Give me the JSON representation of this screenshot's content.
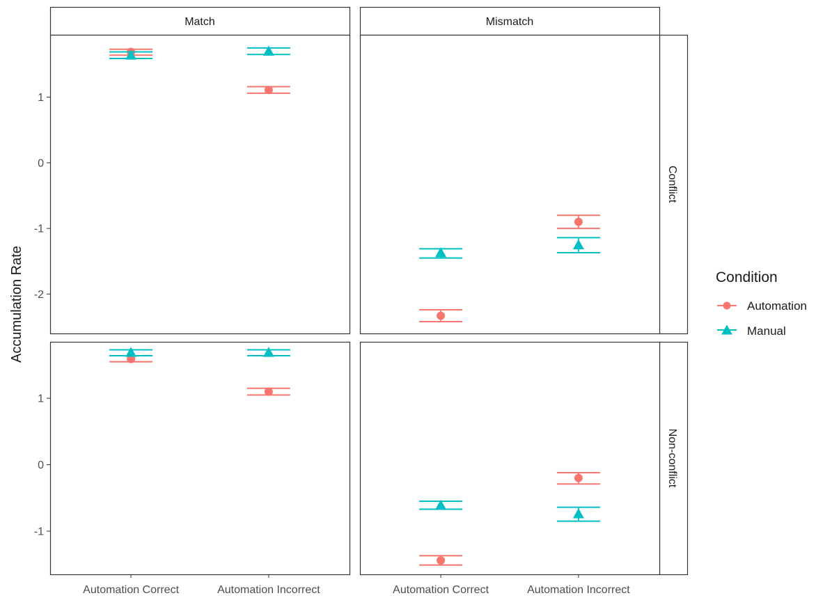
{
  "chart_data": {
    "type": "scatter",
    "ylabel": "Accumulation Rate",
    "xlabel": "",
    "categories": [
      "Automation Correct",
      "Automation Incorrect"
    ],
    "facet_columns": [
      "Match",
      "Mismatch"
    ],
    "facet_rows": [
      "Conflict",
      "Non-conflict"
    ],
    "legend": {
      "title": "Condition",
      "position": "right",
      "entries": [
        {
          "name": "Automation",
          "shape": "circle",
          "color": "#F8766D"
        },
        {
          "name": "Manual",
          "shape": "triangle",
          "color": "#00BFC4"
        }
      ]
    },
    "grid": false,
    "rows": [
      {
        "ylim": [
          -2.6,
          1.95
        ],
        "yticks": [
          -2,
          -1,
          0,
          1
        ],
        "ytick_labels": [
          "-2",
          "-1",
          "0",
          "1"
        ],
        "panels": [
          {
            "column": "Match",
            "series": [
              {
                "name": "Automation",
                "points": [
                  {
                    "category": "Automation Correct",
                    "y": 1.69,
                    "low": 1.64,
                    "high": 1.73
                  },
                  {
                    "category": "Automation Incorrect",
                    "y": 1.11,
                    "low": 1.06,
                    "high": 1.16
                  }
                ]
              },
              {
                "name": "Manual",
                "points": [
                  {
                    "category": "Automation Correct",
                    "y": 1.64,
                    "low": 1.59,
                    "high": 1.69
                  },
                  {
                    "category": "Automation Incorrect",
                    "y": 1.7,
                    "low": 1.65,
                    "high": 1.75
                  }
                ]
              }
            ]
          },
          {
            "column": "Mismatch",
            "series": [
              {
                "name": "Automation",
                "points": [
                  {
                    "category": "Automation Correct",
                    "y": -2.33,
                    "low": -2.42,
                    "high": -2.24
                  },
                  {
                    "category": "Automation Incorrect",
                    "y": -0.9,
                    "low": -1.0,
                    "high": -0.8
                  }
                ]
              },
              {
                "name": "Manual",
                "points": [
                  {
                    "category": "Automation Correct",
                    "y": -1.37,
                    "low": -1.45,
                    "high": -1.31
                  },
                  {
                    "category": "Automation Incorrect",
                    "y": -1.25,
                    "low": -1.37,
                    "high": -1.14
                  }
                ]
              }
            ]
          }
        ]
      },
      {
        "ylim": [
          -1.65,
          1.85
        ],
        "yticks": [
          -1,
          0,
          1
        ],
        "ytick_labels": [
          "-1",
          "0",
          "1"
        ],
        "panels": [
          {
            "column": "Match",
            "series": [
              {
                "name": "Automation",
                "points": [
                  {
                    "category": "Automation Correct",
                    "y": 1.59,
                    "low": 1.55,
                    "high": 1.64
                  },
                  {
                    "category": "Automation Incorrect",
                    "y": 1.1,
                    "low": 1.05,
                    "high": 1.15
                  }
                ]
              },
              {
                "name": "Manual",
                "points": [
                  {
                    "category": "Automation Correct",
                    "y": 1.69,
                    "low": 1.64,
                    "high": 1.73
                  },
                  {
                    "category": "Automation Incorrect",
                    "y": 1.69,
                    "low": 1.64,
                    "high": 1.73
                  }
                ]
              }
            ]
          },
          {
            "column": "Mismatch",
            "series": [
              {
                "name": "Automation",
                "points": [
                  {
                    "category": "Automation Correct",
                    "y": -1.44,
                    "low": -1.51,
                    "high": -1.37
                  },
                  {
                    "category": "Automation Incorrect",
                    "y": -0.2,
                    "low": -0.29,
                    "high": -0.12
                  }
                ]
              },
              {
                "name": "Manual",
                "points": [
                  {
                    "category": "Automation Correct",
                    "y": -0.61,
                    "low": -0.67,
                    "high": -0.55
                  },
                  {
                    "category": "Automation Incorrect",
                    "y": -0.74,
                    "low": -0.85,
                    "high": -0.64
                  }
                ]
              }
            ]
          }
        ]
      }
    ]
  }
}
